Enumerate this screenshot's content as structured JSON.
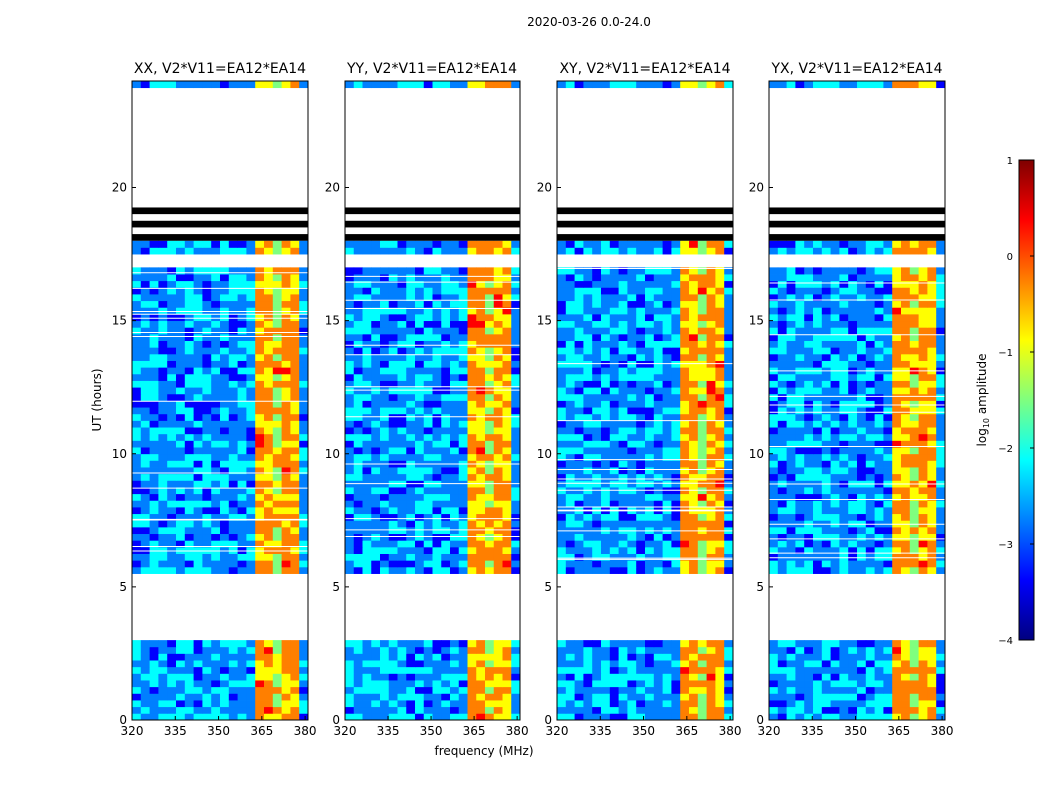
{
  "chart_data": {
    "type": "heatmap",
    "title": "2020-03-26 0.0-24.0",
    "xlabel": "frequency (MHz)",
    "ylabel": "UT (hours)",
    "xlim": [
      320,
      381
    ],
    "ylim": [
      0,
      24
    ],
    "xticks": [
      320,
      335,
      350,
      365,
      380
    ],
    "yticks": [
      0,
      5,
      10,
      15,
      20
    ],
    "panels": [
      {
        "title": "XX, V2*V11=EA12*EA14"
      },
      {
        "title": "YY, V2*V11=EA12*EA14"
      },
      {
        "title": "XY, V2*V11=EA12*EA14"
      },
      {
        "title": "YX, V2*V11=EA12*EA14"
      }
    ],
    "colorbar": {
      "label": "log",
      "label_sub": "10",
      "label_tail": " amplitude",
      "range": [
        -4,
        1
      ],
      "ticks": [
        -4,
        -3,
        -2,
        -1,
        0,
        1
      ],
      "tick_labels": [
        "−4",
        "−3",
        "−2",
        "−1",
        "0",
        "1"
      ],
      "colors": [
        "#00007f",
        "#0000ff",
        "#007fff",
        "#00ffff",
        "#7fff7f",
        "#ffff00",
        "#ff7f00",
        "#ff0000",
        "#7f0000"
      ]
    },
    "data_gaps_ut": [
      [
        2.9,
        5.5
      ],
      [
        17.1,
        17.6
      ],
      [
        19.4,
        23.7
      ]
    ],
    "flagged_black_ut": [
      [
        18.0,
        19.4
      ]
    ],
    "bright_band_mhz": [
      362,
      378
    ]
  }
}
